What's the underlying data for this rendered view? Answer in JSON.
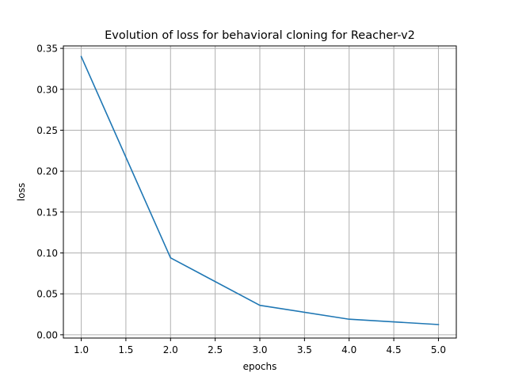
{
  "chart_data": {
    "type": "line",
    "title": "Evolution of loss for behavioral cloning for Reacher-v2",
    "xlabel": "epochs",
    "ylabel": "loss",
    "x": [
      1,
      2,
      3,
      4,
      5
    ],
    "series": [
      {
        "values": [
          0.34,
          0.094,
          0.036,
          0.019,
          0.0125
        ],
        "color": "#1f77b4"
      }
    ],
    "xlim": [
      0.8,
      5.2
    ],
    "ylim": [
      -0.004,
      0.353
    ],
    "xticks": [
      "1.0",
      "1.5",
      "2.0",
      "2.5",
      "3.0",
      "3.5",
      "4.0",
      "4.5",
      "5.0"
    ],
    "yticks": [
      "0.00",
      "0.05",
      "0.10",
      "0.15",
      "0.20",
      "0.25",
      "0.30",
      "0.35"
    ],
    "grid": true,
    "legend": "none"
  }
}
